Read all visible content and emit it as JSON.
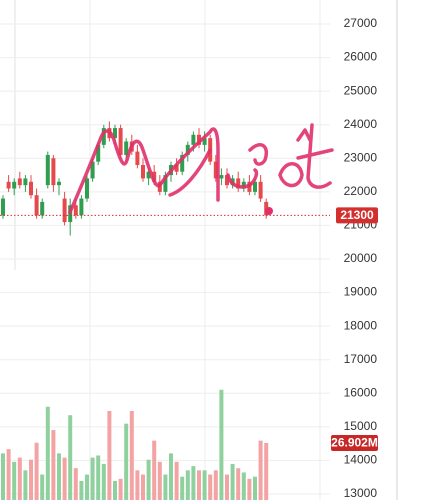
{
  "chart_data": {
    "type": "candlestick",
    "open": [
      21300,
      22300,
      22100,
      22400,
      22200,
      22300,
      21900,
      21300,
      22200,
      23000,
      22200,
      21800,
      21100,
      21600,
      21300,
      21800,
      22400,
      22900,
      23400,
      23900,
      23600,
      23900,
      23100,
      23500,
      23200,
      22800,
      22400,
      22600,
      22300,
      22000,
      22500,
      22800,
      22600,
      23100,
      23400,
      23700,
      23400,
      23600,
      22900,
      22400,
      22500,
      22200,
      22400,
      22100,
      22300,
      22000,
      22300,
      21700
    ],
    "high": [
      21900,
      22500,
      22400,
      22600,
      22500,
      22500,
      22100,
      21800,
      23200,
      23100,
      22400,
      22000,
      21800,
      21800,
      21900,
      22500,
      23000,
      23500,
      24000,
      24100,
      24000,
      24000,
      23600,
      23700,
      23400,
      23000,
      22700,
      22800,
      22500,
      22600,
      22900,
      23000,
      23200,
      23500,
      23800,
      23900,
      23800,
      23700,
      23100,
      22700,
      22700,
      22500,
      22600,
      22400,
      22500,
      22400,
      22500,
      21800
    ],
    "low": [
      21200,
      22000,
      21900,
      22100,
      22000,
      21800,
      21200,
      21200,
      22100,
      22000,
      21900,
      21000,
      20700,
      21200,
      21200,
      21700,
      22300,
      22800,
      23300,
      23500,
      23400,
      23000,
      22900,
      23100,
      22700,
      22300,
      22200,
      22200,
      21900,
      21900,
      22300,
      22500,
      22500,
      22900,
      23200,
      23300,
      23200,
      22800,
      22300,
      22200,
      22100,
      22100,
      22000,
      22000,
      21900,
      21900,
      21700,
      21200
    ],
    "close": [
      21800,
      22100,
      22300,
      22200,
      22400,
      21900,
      21300,
      21700,
      23100,
      22200,
      22300,
      21100,
      21600,
      21300,
      21800,
      22400,
      22900,
      23400,
      23900,
      23600,
      23900,
      23100,
      23500,
      23200,
      22800,
      22400,
      22600,
      22300,
      22000,
      22500,
      22800,
      22600,
      23100,
      23400,
      23700,
      23400,
      23600,
      22900,
      22400,
      22500,
      22200,
      22400,
      22100,
      22300,
      22000,
      22300,
      21800,
      21300
    ],
    "volume": [
      22,
      24,
      18,
      20,
      14,
      19,
      27,
      12,
      44,
      33,
      22,
      20,
      40,
      15,
      9,
      12,
      20,
      21,
      17,
      42,
      9,
      10,
      36,
      42,
      14,
      12,
      19,
      28,
      18,
      12,
      22,
      18,
      11,
      14,
      16,
      14,
      14,
      12,
      14,
      52,
      12,
      17,
      15,
      13,
      10,
      11,
      28,
      26.902
    ],
    "up_color": "#2f9e4f",
    "down_color": "#e5494d",
    "up_volume_color": "#8fd19e",
    "down_volume_color": "#f3a3a3",
    "ylim": [
      13000,
      27000
    ],
    "yticks": [
      13000,
      14000,
      15000,
      16000,
      17000,
      18000,
      19000,
      20000,
      21000,
      22000,
      23000,
      24000,
      25000,
      26000,
      27000
    ],
    "grid": true,
    "last_price": 21300,
    "last_volume": {
      "value": 26.902,
      "label": "26.902M"
    }
  }
}
